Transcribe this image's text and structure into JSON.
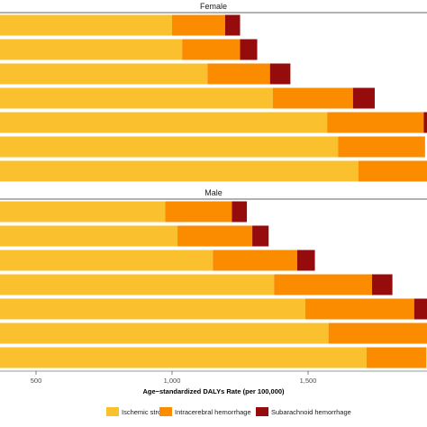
{
  "chart_data": {
    "type": "bar",
    "orientation": "horizontal",
    "stacked": true,
    "xlabel": "Age−standardized DALYs Rate (per 100,000)",
    "x_ticks": [
      500,
      1000,
      1500
    ],
    "x_tick_labels": [
      "500",
      "1,000",
      "1,500"
    ],
    "grid": false,
    "legend_position": "bottom",
    "panels": [
      {
        "label": "Female",
        "bars": [
          {
            "values": [
              1000,
              195,
              55
            ]
          },
          {
            "values": [
              1037,
              213,
              63
            ]
          },
          {
            "values": [
              1130,
              230,
              75
            ]
          },
          {
            "values": [
              1370,
              295,
              80
            ]
          },
          {
            "values": [
              1570,
              355,
              20
            ]
          },
          {
            "values": [
              1610,
              320,
              0
            ]
          },
          {
            "values": [
              1685,
              270,
              0
            ]
          }
        ]
      },
      {
        "label": "Male",
        "bars": [
          {
            "values": [
              975,
              245,
              55
            ]
          },
          {
            "values": [
              1020,
              275,
              60
            ]
          },
          {
            "values": [
              1150,
              310,
              65
            ]
          },
          {
            "values": [
              1375,
              360,
              75
            ]
          },
          {
            "values": [
              1490,
              400,
              50
            ]
          },
          {
            "values": [
              1575,
              390,
              0
            ]
          },
          {
            "values": [
              1715,
              220,
              0
            ]
          }
        ]
      }
    ],
    "series": [
      {
        "name": "Ischemic stroke",
        "color": "#FBC02D"
      },
      {
        "name": "Intracerebral hemorrhage",
        "color": "#FB8C00"
      },
      {
        "name": "Subarachnoid hemorrhage",
        "color": "#960C0C"
      }
    ]
  }
}
